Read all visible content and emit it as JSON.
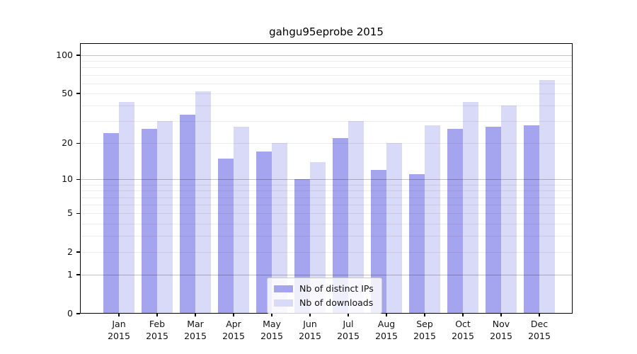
{
  "title": "gahgu95eprobe 2015",
  "chart_data": {
    "type": "bar",
    "title": "gahgu95eprobe 2015",
    "categories": [
      "Jan",
      "Feb",
      "Mar",
      "Apr",
      "May",
      "Jun",
      "Jul",
      "Aug",
      "Sep",
      "Oct",
      "Nov",
      "Dec"
    ],
    "year_label": "2015",
    "series": [
      {
        "name": "Nb of distinct IPs",
        "color": "#a5a5ef",
        "values": [
          24,
          26,
          34,
          15,
          17,
          10,
          22,
          12,
          11,
          26,
          27,
          28
        ]
      },
      {
        "name": "Nb of downloads",
        "color": "#d9d9f8",
        "values": [
          43,
          30,
          52,
          27,
          20,
          14,
          30,
          20,
          28,
          43,
          40,
          64
        ]
      }
    ],
    "yscale": "log1p",
    "ylim": [
      0,
      124
    ],
    "y_ticks": [
      0,
      1,
      2,
      5,
      10,
      20,
      50,
      100
    ],
    "major_grid_values": [
      1,
      10,
      100
    ],
    "minor_grid_values": [
      2,
      3,
      4,
      5,
      6,
      7,
      8,
      9,
      20,
      30,
      40,
      50,
      60,
      70,
      80,
      90
    ],
    "grid": "horizontal",
    "legend_position": "lower center",
    "legend_labels": [
      "Nb of distinct IPs",
      "Nb of downloads"
    ]
  }
}
